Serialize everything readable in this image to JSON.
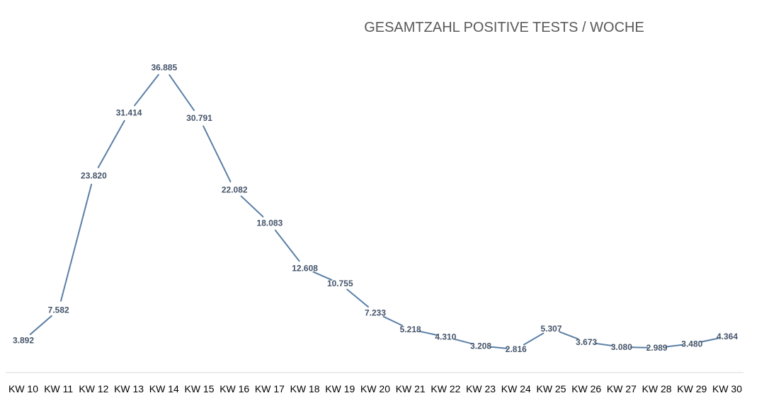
{
  "chart_data": {
    "type": "line",
    "title": "GESAMTZAHL POSITIVE TESTS / WOCHE",
    "xlabel": "",
    "ylabel": "",
    "categories": [
      "KW 10",
      "KW 11",
      "KW 12",
      "KW 13",
      "KW 14",
      "KW 15",
      "KW 16",
      "KW 17",
      "KW 18",
      "KW 19",
      "KW 20",
      "KW 21",
      "KW 22",
      "KW 23",
      "KW 24",
      "KW 25",
      "KW 26",
      "KW 27",
      "KW 28",
      "KW 29",
      "KW 30"
    ],
    "values": [
      3892,
      7582,
      23820,
      31414,
      36885,
      30791,
      22082,
      18083,
      12608,
      10755,
      7233,
      5218,
      4310,
      3208,
      2816,
      5307,
      3673,
      3080,
      2989,
      3480,
      4364
    ],
    "labels": [
      "3.892",
      "7.582",
      "23.820",
      "31.414",
      "36.885",
      "30.791",
      "22.082",
      "18.083",
      "12.608",
      "10.755",
      "7.233",
      "5.218",
      "4.310",
      "3.208",
      "2.816",
      "5.307",
      "3.673",
      "3.080",
      "2.989",
      "3.480",
      "4.364"
    ],
    "ylim": [
      0,
      40000
    ],
    "grid": false,
    "legend": "none",
    "line_color": "#5b7fa6",
    "label_color": "#44546a",
    "axis_color": "#d9d9d9"
  }
}
